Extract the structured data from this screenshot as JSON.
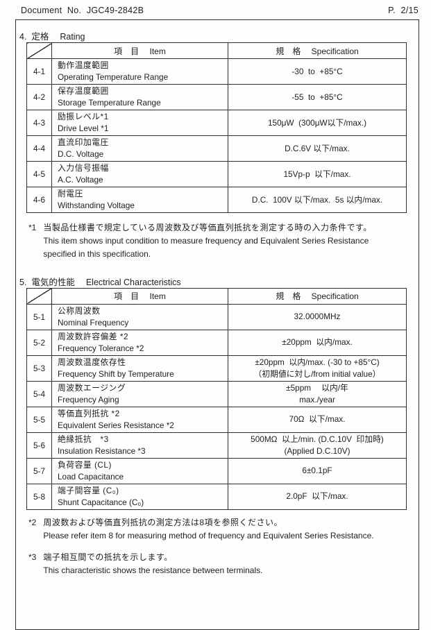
{
  "header": {
    "doc_no": "Document  No.  JGC49-2842B",
    "page_no": "P.  2/15"
  },
  "section4": {
    "heading": "4.  定格　 Rating",
    "col_item": "項　目　 Item",
    "col_spec": "規　格　 Specification",
    "rows": [
      {
        "no": "4-1",
        "jp": "動作温度範囲",
        "en": "Operating Temperature Range",
        "spec1": "-30  to  +85°C"
      },
      {
        "no": "4-2",
        "jp": "保存温度範囲",
        "en": "Storage Temperature Range",
        "spec1": "-55  to  +85°C"
      },
      {
        "no": "4-3",
        "jp": "励振レベル*1",
        "en": "Drive Level *1",
        "spec1": "150μW  (300μW以下/max.)"
      },
      {
        "no": "4-4",
        "jp": "直流印加電圧",
        "en": "D.C. Voltage",
        "spec1": "D.C.6V 以下/max."
      },
      {
        "no": "4-5",
        "jp": "入力信号振幅",
        "en": "A.C. Voltage",
        "spec1": "15Vp-p  以下/max."
      },
      {
        "no": "4-6",
        "jp": "耐電圧",
        "en": "Withstanding Voltage",
        "spec1": "D.C.  100V 以下/max.  5s 以内/max."
      }
    ],
    "note1": {
      "marker": "*1",
      "jp": "当製品仕様書で規定している周波数及び等価直列抵抗を測定する時の入力条件です。",
      "en1": "This item shows input condition to measure frequency and Equivalent Series Resistance",
      "en2": "specified in this specification."
    }
  },
  "section5": {
    "heading": "5.  電気的性能　 Electrical Characteristics",
    "col_item": "項　目　 Item",
    "col_spec": "規　格　 Specification",
    "rows": [
      {
        "no": "5-1",
        "jp": "公称周波数",
        "en": "Nominal Frequency",
        "spec1": "32.0000MHz"
      },
      {
        "no": "5-2",
        "jp": "周波数許容偏差 *2",
        "en": "Frequency Tolerance *2",
        "spec1": "±20ppm  以内/max."
      },
      {
        "no": "5-3",
        "jp": "周波数温度依存性",
        "en": "Frequency Shift by Temperature",
        "spec1": "±20ppm  以内/max. (-30 to +85°C)",
        "spec2": "（初期値に対し/from initial value）"
      },
      {
        "no": "5-4",
        "jp": "周波数エージング",
        "en": "Frequency Aging",
        "spec1": "±5ppm　 以内/年",
        "spec2": "max./year"
      },
      {
        "no": "5-5",
        "jp": "等価直列抵抗 *2",
        "en": "Equivalent Series Resistance *2",
        "spec1": "70Ω  以下/max."
      },
      {
        "no": "5-6",
        "jp": "絶縁抵抗　*3",
        "en": "Insulation Resistance *3",
        "spec1": "500MΩ  以上/min. (D.C.10V  印加時)",
        "spec2": "(Applied D.C.10V)"
      },
      {
        "no": "5-7",
        "jp": "負荷容量 (CL)",
        "en": "Load Capacitance",
        "spec1": "6±0.1pF"
      },
      {
        "no": "5-8",
        "jp": "端子間容量 (C₀)",
        "en": "Shunt Capacitance (C₀)",
        "spec1": "2.0pF  以下/max."
      }
    ],
    "note2": {
      "marker": "*2",
      "jp": "周波数および等価直列抵抗の測定方法は8項を参照ください。",
      "en1": "Please refer item 8 for measuring method of frequency and Equivalent Series Resistance."
    },
    "note3": {
      "marker": "*3",
      "jp": "端子相互間での抵抗を示します。",
      "en1": "This characteristic shows the resistance between terminals."
    }
  }
}
